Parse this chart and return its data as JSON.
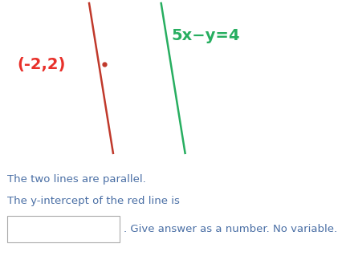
{
  "background_color": "#ffffff",
  "red_line_color": "#c0392b",
  "green_line_color": "#27ae60",
  "linewidth": 1.8,
  "point_label": "(-2,2)",
  "point_label_color": "#e8302a",
  "point_color": "#c0392b",
  "green_label": "5x−y=4",
  "green_label_color": "#27ae60",
  "green_label_fontsize": 14,
  "green_label_fontweight": "bold",
  "point_label_fontsize": 14,
  "point_label_fontweight": "bold",
  "text1": "The two lines are parallel.",
  "text2": "The y-intercept of the red line is",
  "text3": ". Give answer as a number. No variable.",
  "text_color": "#4a6fa5",
  "text_fontsize": 9.5,
  "red_line_x": [
    0.26,
    0.33
  ],
  "red_line_y": [
    0.98,
    0.05
  ],
  "green_line_x": [
    0.47,
    0.54
  ],
  "green_line_y": [
    0.98,
    0.05
  ],
  "point_fx": 0.305,
  "point_fy": 0.6,
  "label_fx": 0.05,
  "label_fy": 0.6,
  "green_label_fx": 0.5,
  "green_label_fy": 0.78
}
